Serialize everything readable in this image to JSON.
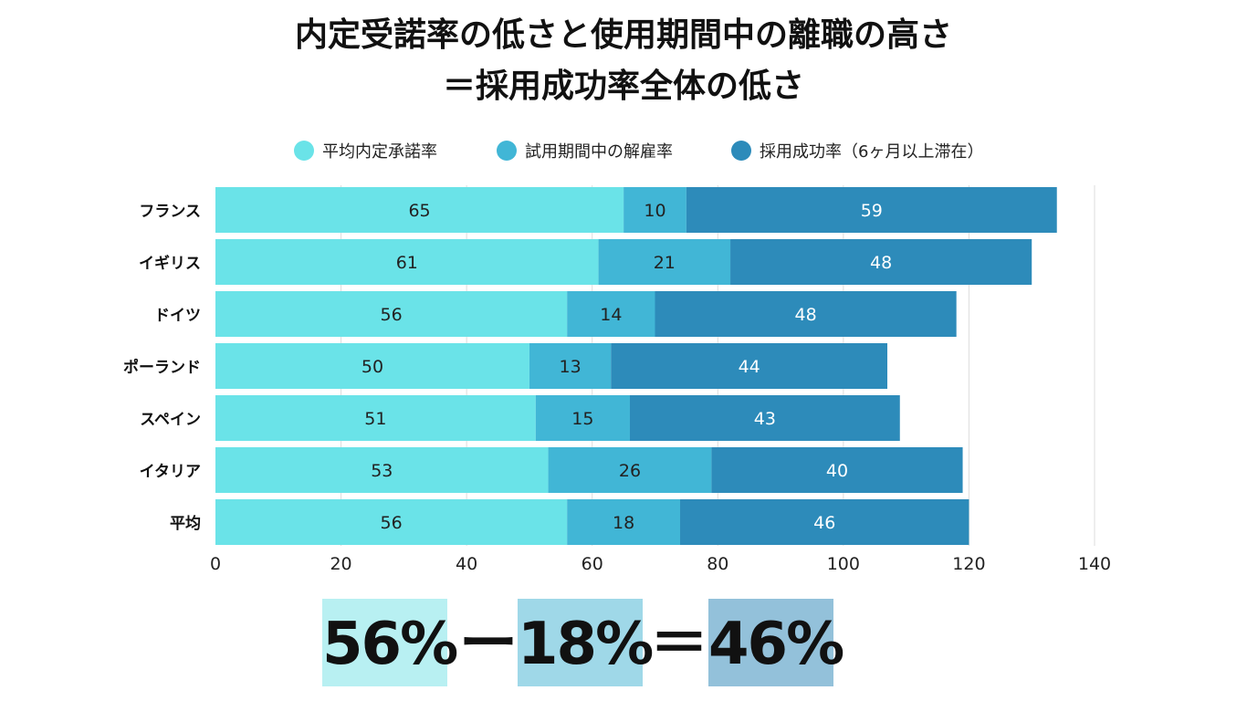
{
  "chart_data": {
    "type": "bar",
    "orientation": "horizontal",
    "stacked": true,
    "title": "内定受諾率の低さと使用期間中の離職の高さ",
    "subtitle": "＝採用成功率全体の低さ",
    "categories": [
      "フランス",
      "イギリス",
      "ドイツ",
      "ポーランド",
      "スペイン",
      "イタリア",
      "平均"
    ],
    "series": [
      {
        "name": "平均内定承諾率",
        "color": "#6ae3e8",
        "values": [
          65,
          61,
          56,
          50,
          51,
          53,
          56
        ]
      },
      {
        "name": "試用期間中の解雇率",
        "color": "#41b6d6",
        "values": [
          10,
          21,
          14,
          13,
          15,
          26,
          18
        ]
      },
      {
        "name": "採用成功率（6ヶ月以上滞在）",
        "color": "#2d8bba",
        "values": [
          59,
          48,
          48,
          44,
          43,
          40,
          46
        ]
      }
    ],
    "xlim": [
      0,
      140
    ],
    "xticks": [
      0,
      20,
      40,
      60,
      80,
      100,
      120,
      140
    ],
    "grid": true,
    "legend_position": "top",
    "data_labels": true
  },
  "equation": {
    "a": "56%",
    "minus": "ー",
    "b": "18%",
    "equals": "＝",
    "c": "46%",
    "colors": [
      "#b8f0f2",
      "#9fd8e8",
      "#93c1da"
    ]
  }
}
